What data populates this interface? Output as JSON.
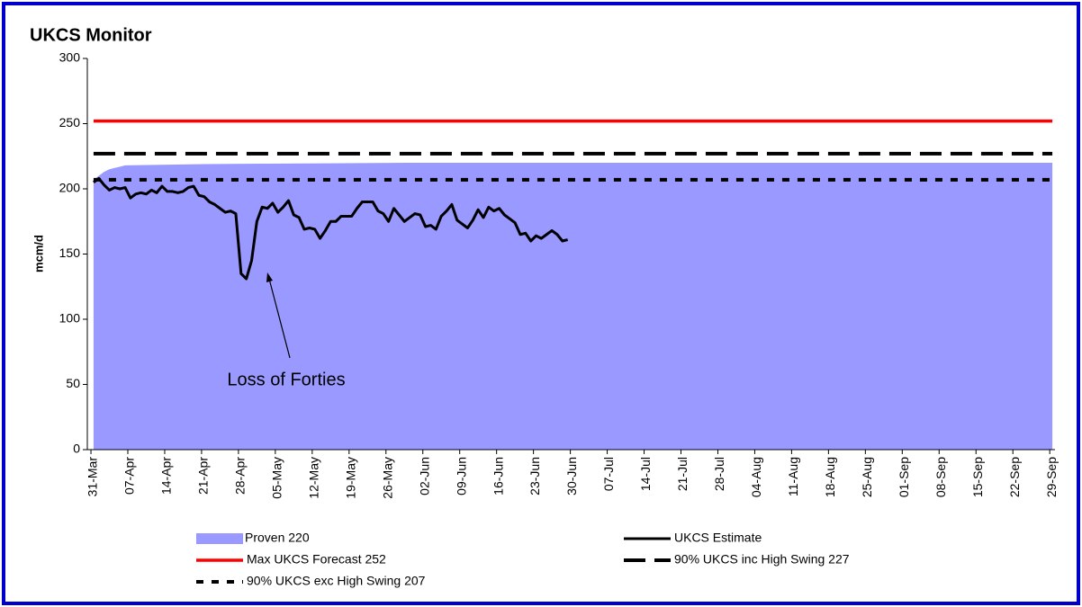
{
  "chart_data": {
    "type": "line",
    "title": "UKCS Monitor",
    "y_label": "mcm/d",
    "ylim": [
      0,
      300
    ],
    "yticks": [
      0,
      50,
      100,
      150,
      200,
      250,
      300
    ],
    "xlim": [
      -0.5,
      182.5
    ],
    "xticks": [
      {
        "value": 0,
        "label": "31-Mar"
      },
      {
        "value": 7,
        "label": "07-Apr"
      },
      {
        "value": 14,
        "label": "14-Apr"
      },
      {
        "value": 21,
        "label": "21-Apr"
      },
      {
        "value": 28,
        "label": "28-Apr"
      },
      {
        "value": 35,
        "label": "05-May"
      },
      {
        "value": 42,
        "label": "12-May"
      },
      {
        "value": 49,
        "label": "19-May"
      },
      {
        "value": 56,
        "label": "26-May"
      },
      {
        "value": 63,
        "label": "02-Jun"
      },
      {
        "value": 70,
        "label": "09-Jun"
      },
      {
        "value": 77,
        "label": "16-Jun"
      },
      {
        "value": 84,
        "label": "23-Jun"
      },
      {
        "value": 91,
        "label": "30-Jun"
      },
      {
        "value": 98,
        "label": "07-Jul"
      },
      {
        "value": 105,
        "label": "14-Jul"
      },
      {
        "value": 112,
        "label": "21-Jul"
      },
      {
        "value": 119,
        "label": "28-Jul"
      },
      {
        "value": 126,
        "label": "04-Aug"
      },
      {
        "value": 133,
        "label": "11-Aug"
      },
      {
        "value": 140,
        "label": "18-Aug"
      },
      {
        "value": 147,
        "label": "25-Aug"
      },
      {
        "value": 154,
        "label": "01-Sep"
      },
      {
        "value": 161,
        "label": "08-Sep"
      },
      {
        "value": 168,
        "label": "15-Sep"
      },
      {
        "value": 175,
        "label": "22-Sep"
      },
      {
        "value": 182,
        "label": "29-Sep"
      }
    ],
    "annotation": "Loss of Forties",
    "series": [
      {
        "name": "Proven 220",
        "kind": "area",
        "color": "#9999ff",
        "x": [
          0,
          1,
          2,
          3,
          4,
          5,
          6,
          21,
          60,
          182
        ],
        "values": [
          207,
          210,
          213,
          215,
          216,
          217,
          218,
          219,
          220,
          220
        ]
      },
      {
        "name": "UKCS Estimate",
        "kind": "solid",
        "color": "#000000",
        "x": [
          0,
          1,
          2,
          3,
          4,
          5,
          6,
          7,
          8,
          9,
          10,
          11,
          12,
          13,
          14,
          15,
          16,
          17,
          18,
          19,
          20,
          21,
          22,
          23,
          24,
          25,
          26,
          27,
          28,
          29,
          30,
          31,
          32,
          33,
          34,
          35,
          36,
          37,
          38,
          39,
          40,
          41,
          42,
          43,
          44,
          45,
          46,
          47,
          48,
          49,
          50,
          51,
          52,
          53,
          54,
          55,
          56,
          57,
          58,
          59,
          60,
          61,
          62,
          63,
          64,
          65,
          66,
          67,
          68,
          69,
          70,
          71,
          72,
          73,
          74,
          75,
          76,
          77,
          78,
          79,
          80,
          81,
          82,
          83,
          84,
          85,
          86,
          87,
          88,
          89,
          90
        ],
        "values": [
          205,
          208,
          203,
          199,
          201,
          200,
          201,
          193,
          196,
          197,
          196,
          199,
          197,
          202,
          198,
          198,
          197,
          198,
          201,
          202,
          195,
          194,
          190,
          188,
          185,
          182,
          183,
          181,
          135,
          131,
          145,
          175,
          186,
          185,
          189,
          182,
          186,
          191,
          180,
          178,
          169,
          170,
          169,
          162,
          168,
          175,
          175,
          179,
          179,
          179,
          185,
          190,
          190,
          190,
          183,
          181,
          175,
          185,
          180,
          175,
          178,
          181,
          180,
          171,
          172,
          169,
          179,
          183,
          188,
          176,
          173,
          170,
          176,
          184,
          178,
          186,
          183,
          185,
          180,
          177,
          174,
          165,
          166,
          160,
          164,
          162,
          165,
          168,
          165,
          160,
          161
        ]
      },
      {
        "name": "Max UKCS Forecast 252",
        "kind": "solid",
        "color": "#ff0000",
        "x": [
          0,
          182
        ],
        "values": [
          252,
          252
        ]
      },
      {
        "name": "90% UKCS inc High Swing 227",
        "kind": "dashed",
        "color": "#000000",
        "x": [
          0,
          182
        ],
        "values": [
          227,
          227
        ]
      },
      {
        "name": "90% UKCS exc High Swing 207",
        "kind": "dotted",
        "color": "#000000",
        "x": [
          0,
          182
        ],
        "values": [
          207,
          207
        ]
      }
    ]
  }
}
